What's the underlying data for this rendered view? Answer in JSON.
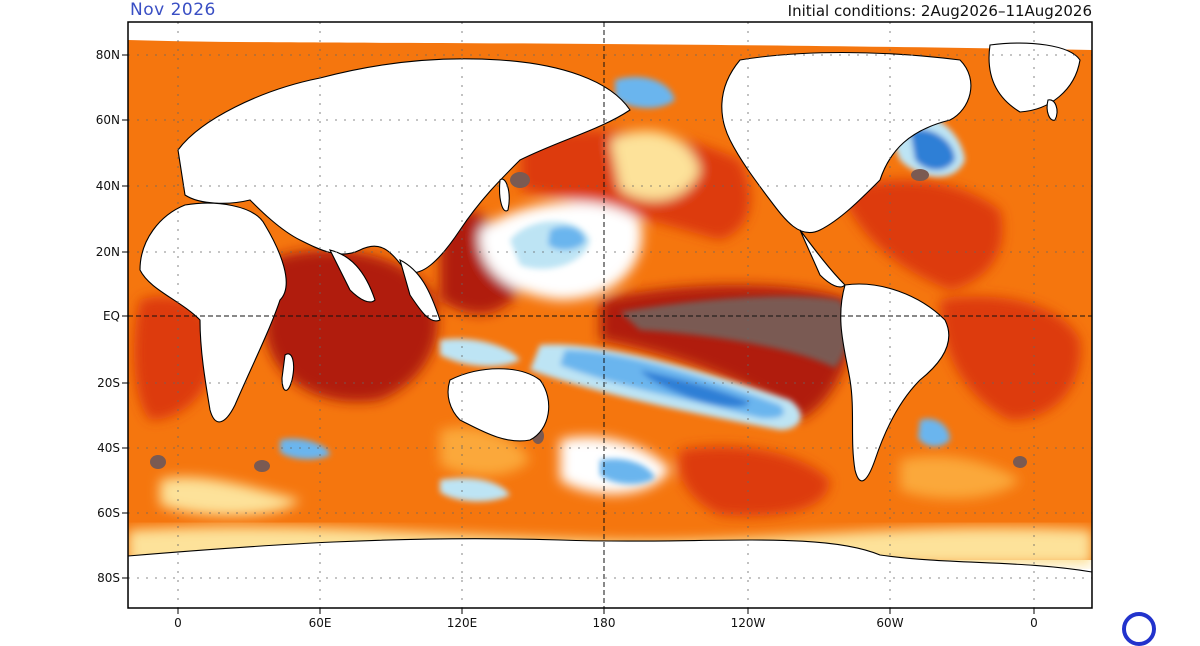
{
  "header": {
    "period": "Nov 2026",
    "initial_conditions": "Initial conditions: 2Aug2026–11Aug2026"
  },
  "axes": {
    "lat_labels": [
      "80N",
      "60N",
      "40N",
      "20N",
      "EQ",
      "20S",
      "40S",
      "60S",
      "80S"
    ],
    "lon_labels": [
      "0",
      "60E",
      "120E",
      "180",
      "120W",
      "60W",
      "0"
    ]
  },
  "colors": {
    "deep_warm": "#7a5a52",
    "dark_red": "#b01c0c",
    "red": "#dd3a0c",
    "orange": "#f5760e",
    "light_orange": "#fba83a",
    "yellow": "#fde29a",
    "light_blue": "#bde4f4",
    "blue": "#6bb5ee",
    "dark_blue": "#2f7fd6",
    "land": "#ffffff",
    "coast": "#000000",
    "logo": "#2233cc"
  }
}
